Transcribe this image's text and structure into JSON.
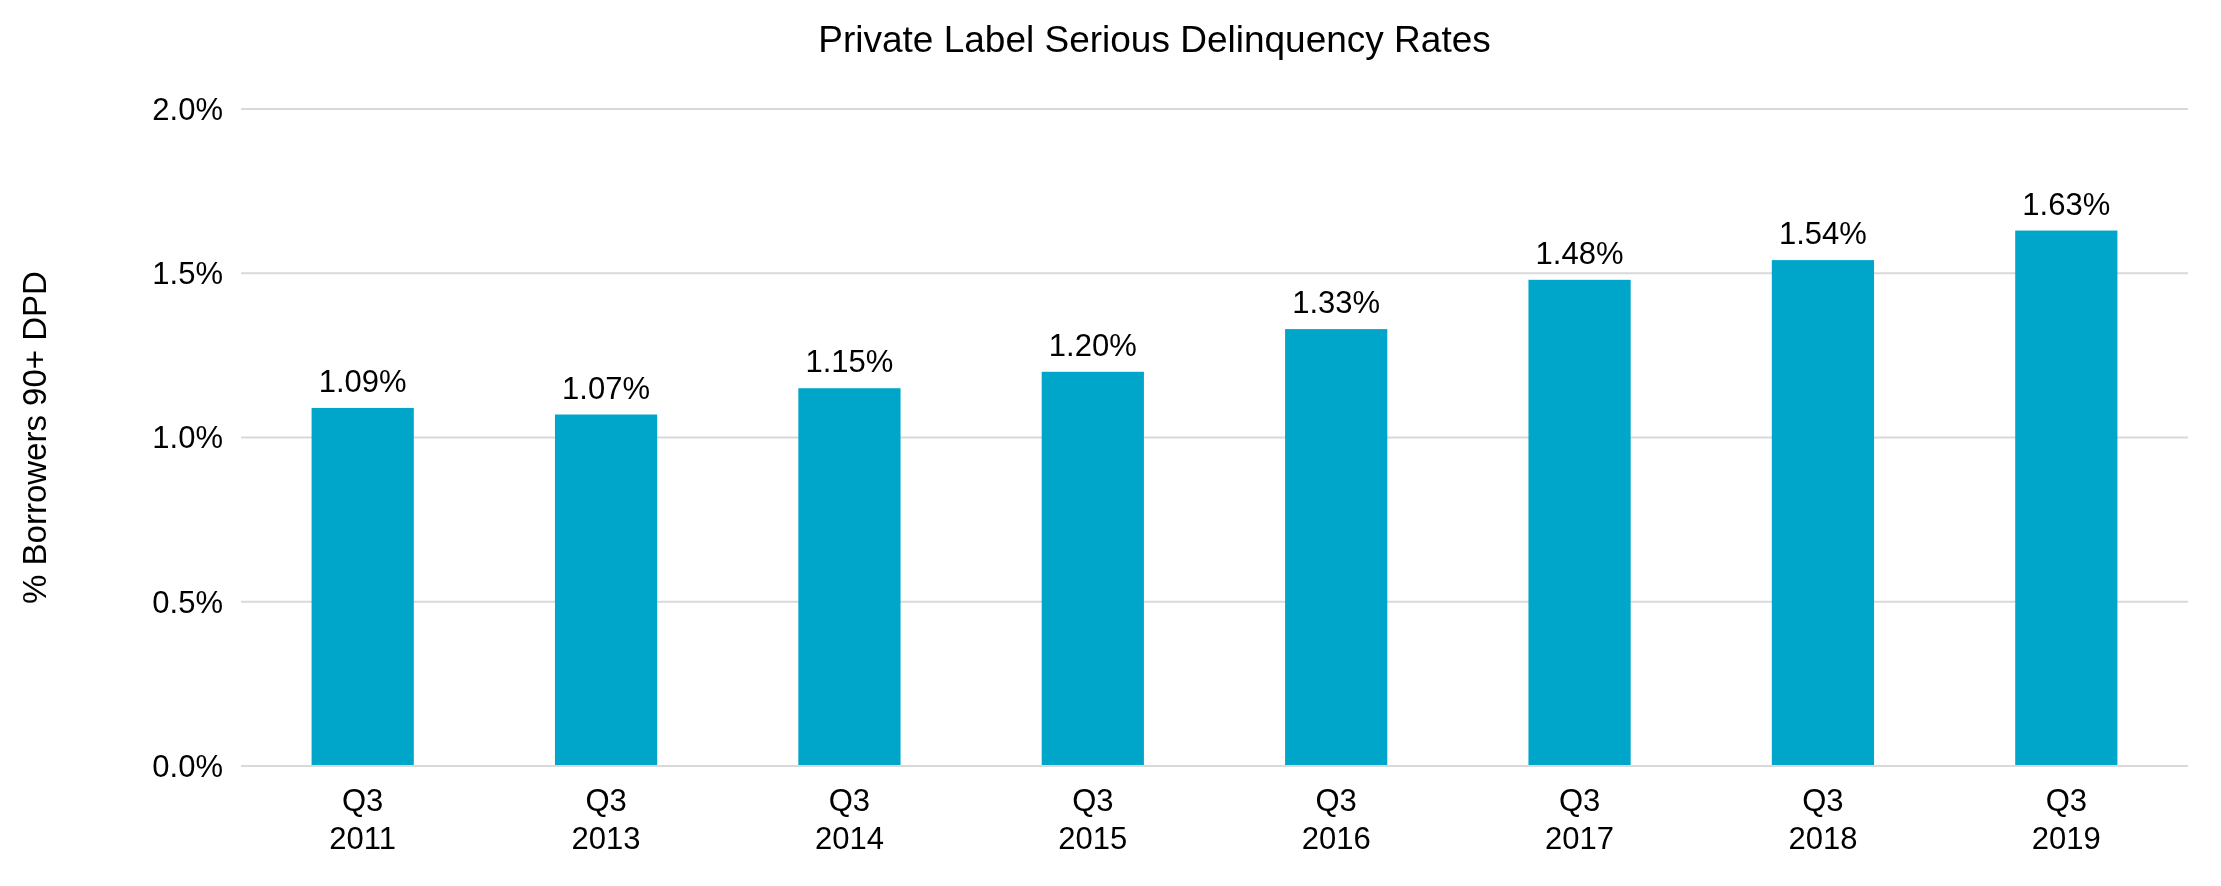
{
  "chart_data": {
    "type": "bar",
    "title": "Private Label Serious Delinquency Rates",
    "ylabel": "% Borrowers 90+ DPD",
    "categories": [
      "Q3 2011",
      "Q3 2013",
      "Q3 2014",
      "Q3 2015",
      "Q3 2016",
      "Q3 2017",
      "Q3 2018",
      "Q3 2019"
    ],
    "values": [
      1.09,
      1.07,
      1.15,
      1.2,
      1.33,
      1.48,
      1.54,
      1.63
    ],
    "value_labels": [
      "1.09%",
      "1.07%",
      "1.15%",
      "1.20%",
      "1.33%",
      "1.48%",
      "1.54%",
      "1.63%"
    ],
    "color": "#00a6c9",
    "ylim": [
      0,
      2
    ],
    "yticks": [
      {
        "value": 0,
        "label": "0.0%"
      },
      {
        "value": 0.5,
        "label": "0.5%"
      },
      {
        "value": 1,
        "label": "1.0%"
      },
      {
        "value": 1.5,
        "label": "1.5%"
      },
      {
        "value": 2,
        "label": "2.0%"
      }
    ],
    "grid": "y"
  }
}
